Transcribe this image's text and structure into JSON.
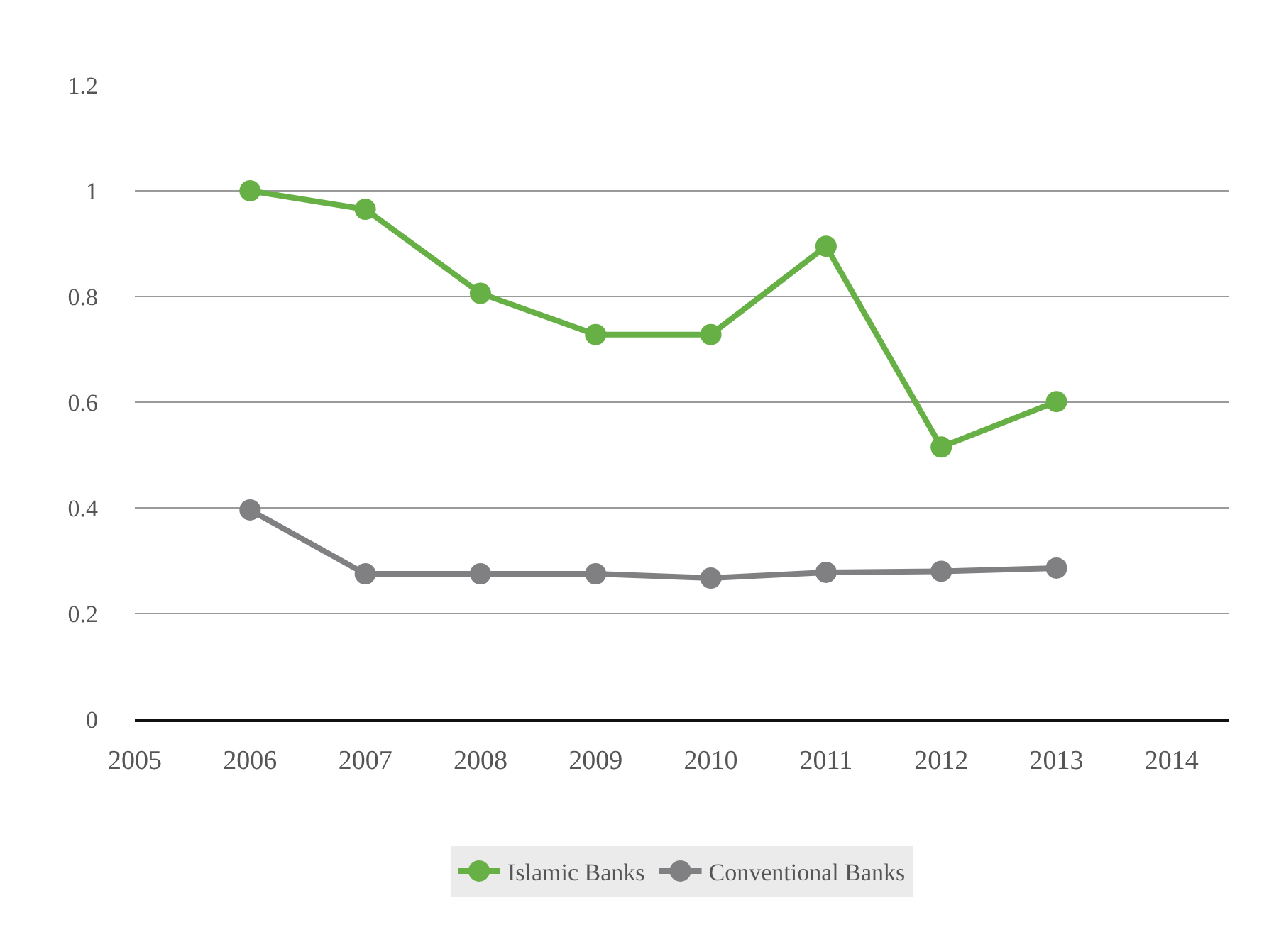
{
  "chart_data": {
    "type": "line",
    "x": [
      2006,
      2007,
      2008,
      2009,
      2010,
      2011,
      2012,
      2013
    ],
    "series": [
      {
        "name": "Islamic Banks",
        "color": "#66b045",
        "values": [
          1.0,
          0.965,
          0.806,
          0.728,
          0.728,
          0.895,
          0.515,
          0.601
        ]
      },
      {
        "name": "Conventional Banks",
        "color": "#808083",
        "values": [
          0.396,
          0.275,
          0.275,
          0.275,
          0.267,
          0.278,
          0.28,
          0.286
        ]
      }
    ],
    "xlim": [
      2005,
      2014.5
    ],
    "xticks": [
      2005,
      2006,
      2007,
      2008,
      2009,
      2010,
      2011,
      2012,
      2013,
      2014
    ],
    "ylim": [
      0,
      1.2
    ],
    "yticks": [
      0,
      0.2,
      0.4,
      0.6,
      0.8,
      1,
      1.2
    ],
    "grid": "y",
    "legend": "bottom",
    "marker": "circle",
    "line_style": "solid"
  }
}
